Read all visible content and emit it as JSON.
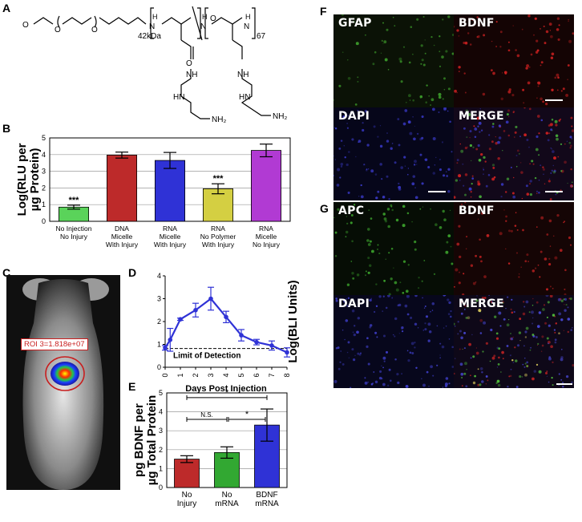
{
  "panels": {
    "A": "A",
    "B": "B",
    "C": "C",
    "D": "D",
    "E": "E",
    "F": "F",
    "G": "G"
  },
  "chem": {
    "peg_label": "42kDa",
    "repeat_n": "67",
    "nh2_a": "NH",
    "nh2_b": "NH"
  },
  "panelB": {
    "ylabel_line1": "Log(RLU per",
    "ylabel_line2": "µg Protein)",
    "chart_data": {
      "type": "bar",
      "categories": [
        [
          "No Injection",
          "No Injury"
        ],
        [
          "DNA",
          "Micelle",
          "With Injury"
        ],
        [
          "RNA",
          "Micelle",
          "With Injury"
        ],
        [
          "RNA",
          "No Polymer",
          "With Injury"
        ],
        [
          "RNA",
          "Micelle",
          "No Injury"
        ]
      ],
      "values": [
        0.85,
        3.97,
        3.65,
        1.95,
        4.25
      ],
      "errors": [
        0.12,
        0.18,
        0.48,
        0.3,
        0.38
      ],
      "colors": [
        "#5ad35a",
        "#bd2a2a",
        "#2f32d6",
        "#d4cf42",
        "#b13ad3"
      ],
      "annotations": [
        "***",
        "",
        "",
        "***",
        ""
      ],
      "ylim": [
        0,
        5
      ],
      "yticks": [
        "0",
        "1",
        "2",
        "3",
        "4",
        "5"
      ],
      "grid": true
    }
  },
  "panelC": {
    "roi_label": "ROI 3=1.818e+07"
  },
  "panelD": {
    "ylabel": "Log(BLI Units)",
    "xlabel": "Days Post Injection",
    "lod_label": "Limit of Detection",
    "chart_data": {
      "type": "line",
      "x": [
        0,
        0.33,
        1,
        2,
        3,
        4,
        5,
        6,
        7,
        8
      ],
      "y": [
        0.85,
        1.2,
        2.1,
        2.5,
        3.0,
        2.2,
        1.4,
        1.1,
        0.95,
        0.65
      ],
      "errors": [
        0.1,
        0.5,
        0.05,
        0.3,
        0.5,
        0.25,
        0.25,
        0.12,
        0.2,
        0.2
      ],
      "color": "#2f32d6",
      "limit_of_detection": 0.82,
      "xticks": [
        "0",
        "1",
        "2",
        "3",
        "4",
        "5",
        "6",
        "7",
        "8"
      ],
      "yticks": [
        "0",
        "1",
        "2",
        "3",
        "4"
      ],
      "xlim": [
        0,
        8
      ],
      "ylim": [
        0,
        4
      ]
    }
  },
  "panelE": {
    "ylabel_line1": "pg BDNF per",
    "ylabel_line2": "µg Total Protein",
    "chart_data": {
      "type": "bar",
      "categories": [
        [
          "No",
          "Injury"
        ],
        [
          "No",
          "mRNA"
        ],
        [
          "BDNF",
          "mRNA"
        ]
      ],
      "values": [
        1.5,
        1.85,
        3.3
      ],
      "errors": [
        0.18,
        0.3,
        0.85
      ],
      "colors": [
        "#bd2a2a",
        "#32a832",
        "#2f32d6"
      ],
      "ylim": [
        0,
        5
      ],
      "yticks": [
        "0",
        "1",
        "2",
        "3",
        "4",
        "5"
      ],
      "grid": true,
      "brackets": [
        {
          "from": 0,
          "to": 2,
          "label": "*",
          "level": 4.75
        },
        {
          "from": 1,
          "to": 2,
          "label": "*",
          "level": 3.6
        },
        {
          "from": 0,
          "to": 1,
          "label": "N.S.",
          "level": 3.6
        }
      ]
    }
  },
  "panelF": {
    "labels": [
      "GFAP",
      "BDNF",
      "DAPI",
      "MERGE"
    ]
  },
  "panelG": {
    "labels": [
      "APC",
      "BDNF",
      "DAPI",
      "MERGE"
    ]
  }
}
